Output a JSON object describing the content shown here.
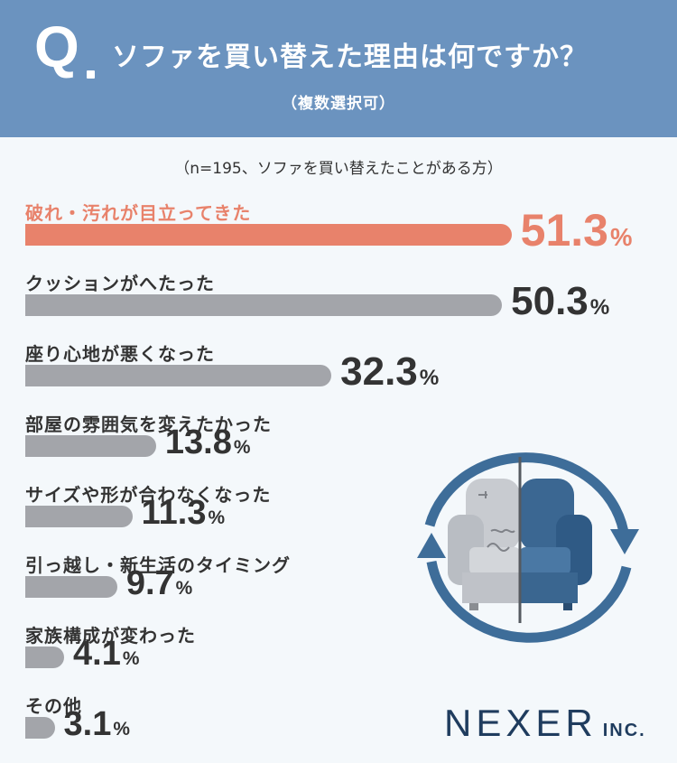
{
  "header": {
    "q_mark": "Q",
    "title": "ソファを買い替えた理由は何ですか？",
    "subtitle": "（複数選択可）"
  },
  "note": "（n=195、ソファを買い替えたことがある方）",
  "chart_data": {
    "type": "bar",
    "orientation": "horizontal",
    "categories": [
      "破れ・汚れが目立ってきた",
      "クッションがへたった",
      "座り心地が悪くなった",
      "部屋の雰囲気を変えたかった",
      "サイズや形が合わなくなった",
      "引っ越し・新生活のタイミング",
      "家族構成が変わった",
      "その他"
    ],
    "values": [
      51.3,
      50.3,
      32.3,
      13.8,
      11.3,
      9.7,
      4.1,
      3.1
    ],
    "value_suffix": "%",
    "highlight_index": 0,
    "xlim": [
      0,
      100
    ],
    "colors": {
      "highlight": "#e8826b",
      "default": "#a3a5aa"
    }
  },
  "illustration": {
    "icon": "sofa-refresh-icon"
  },
  "logo": {
    "main": "NEXER",
    "suffix": "INC."
  }
}
